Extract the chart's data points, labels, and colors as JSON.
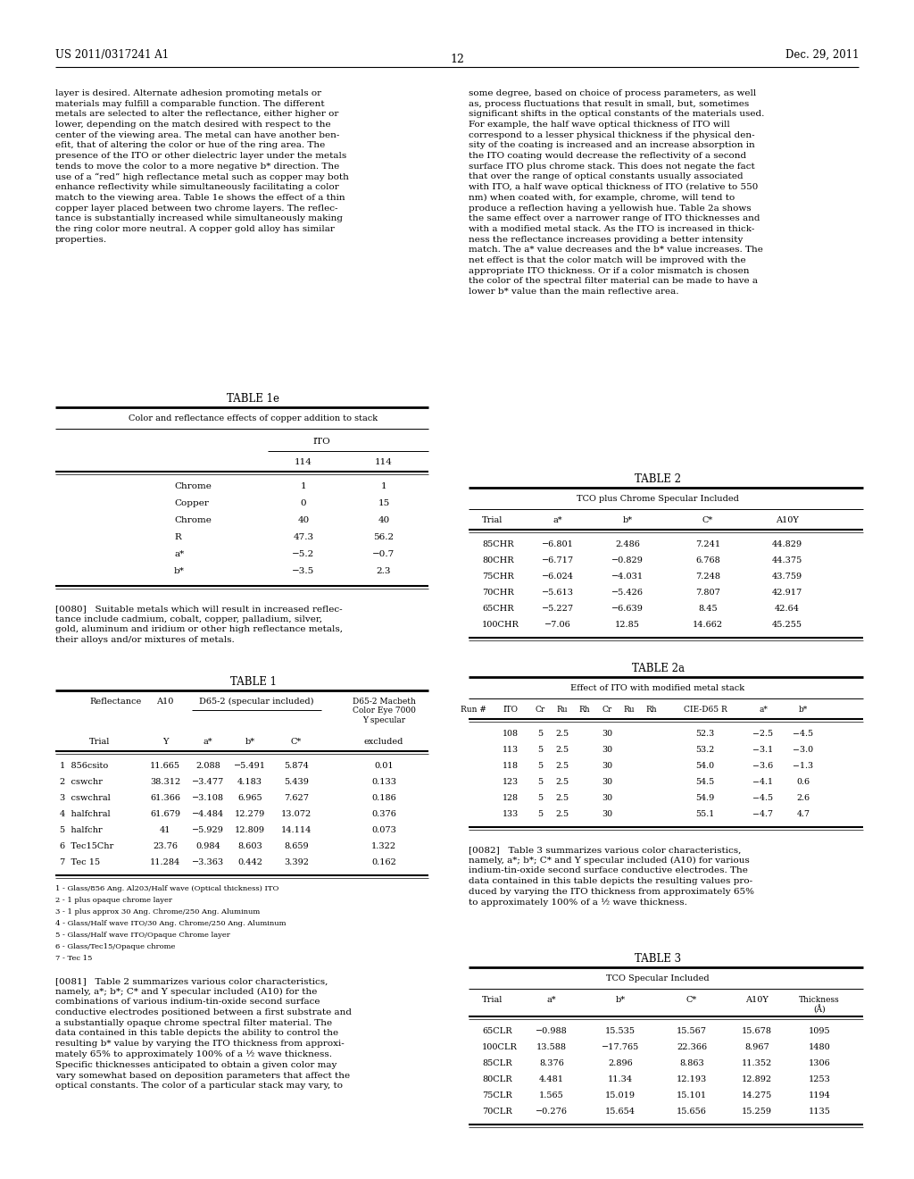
{
  "header_left": "US 2011/0317241 A1",
  "header_right": "Dec. 29, 2011",
  "page_number": "12",
  "background_color": "#ffffff",
  "text_color": "#000000"
}
